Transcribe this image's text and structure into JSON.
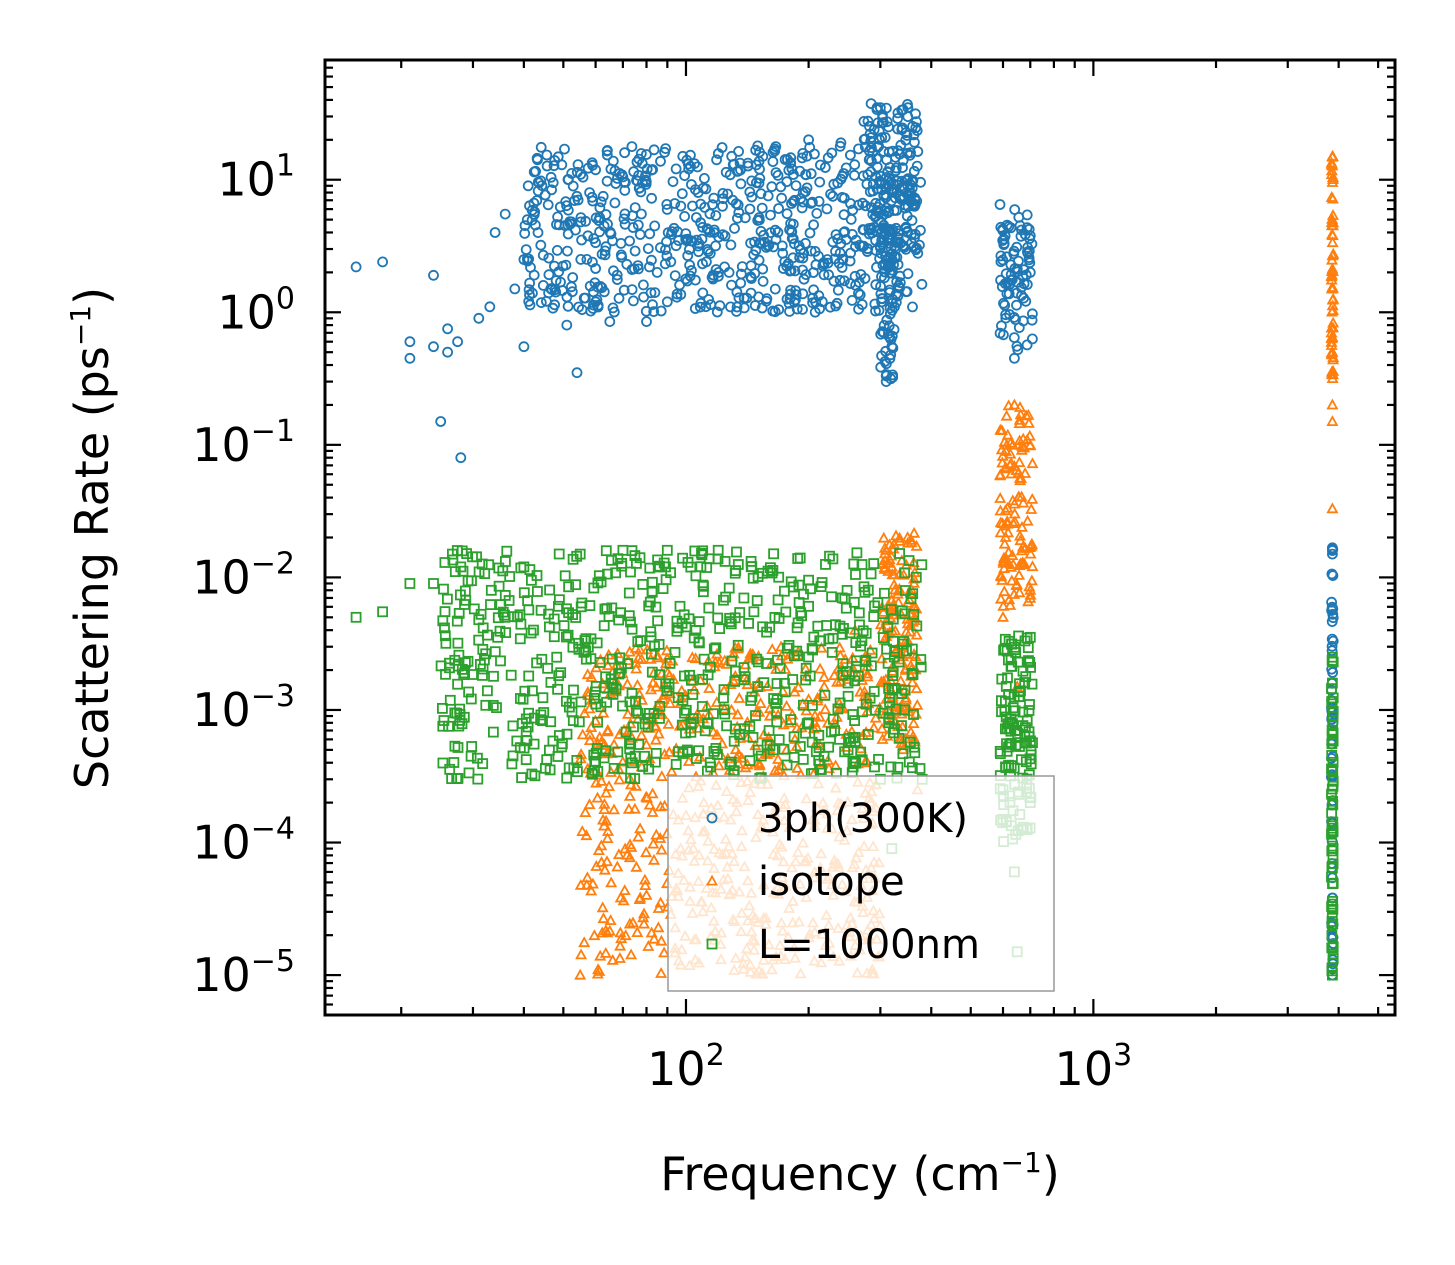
{
  "chart_data": {
    "type": "scatter",
    "x_scale": "log",
    "y_scale": "log",
    "xlabel": "Frequency (cm",
    "xlabel_sup": "−1",
    "xlabel_end": ")",
    "ylabel": "Scattering Rate (ps",
    "ylabel_sup": "−1",
    "ylabel_end": ")",
    "xlim": [
      13,
      5500
    ],
    "ylim": [
      5e-06,
      80
    ],
    "x_ticks": [
      {
        "value": 100,
        "base": "10",
        "exp": "2"
      },
      {
        "value": 1000,
        "base": "10",
        "exp": "3"
      }
    ],
    "y_ticks": [
      {
        "value": 10,
        "base": "10",
        "exp": "1"
      },
      {
        "value": 1,
        "base": "10",
        "exp": "0"
      },
      {
        "value": 0.1,
        "base": "10",
        "exp": "−1"
      },
      {
        "value": 0.01,
        "base": "10",
        "exp": "−2"
      },
      {
        "value": 0.001,
        "base": "10",
        "exp": "−3"
      },
      {
        "value": 0.0001,
        "base": "10",
        "exp": "−4"
      },
      {
        "value": 1e-05,
        "base": "10",
        "exp": "−5"
      }
    ],
    "legend_position": "bottom-center",
    "series": [
      {
        "name": "3ph(300K)",
        "marker": "circle",
        "color": "#1f77b4",
        "sample_points": [
          [
            15.5,
            2.2
          ],
          [
            18,
            2.4
          ],
          [
            21,
            0.45
          ],
          [
            21,
            0.6
          ],
          [
            24,
            0.55
          ],
          [
            24,
            1.9
          ],
          [
            25,
            0.15
          ],
          [
            26,
            0.75
          ],
          [
            26,
            0.5
          ],
          [
            27.5,
            0.6
          ],
          [
            28,
            0.08
          ],
          [
            31,
            0.9
          ],
          [
            33,
            1.1
          ],
          [
            34,
            4.0
          ],
          [
            36,
            5.5
          ],
          [
            38,
            1.5
          ],
          [
            40,
            0.55
          ],
          [
            40,
            2.5
          ],
          [
            41,
            9.0
          ],
          [
            46,
            1.4
          ],
          [
            51,
            0.8
          ],
          [
            54,
            0.35
          ],
          [
            58,
            8.0
          ],
          [
            60,
            1.2
          ],
          [
            65,
            0.85
          ],
          [
            70,
            10.5
          ],
          [
            80,
            0.85
          ],
          [
            85,
            2.0
          ],
          [
            90,
            1.2
          ],
          [
            95,
            1.3
          ],
          [
            110,
            1.4
          ],
          [
            150,
            18.0
          ],
          [
            200,
            20.0
          ],
          [
            240,
            19.0
          ],
          [
            300,
            35.0
          ],
          [
            310,
            0.3
          ],
          [
            320,
            0.55
          ],
          [
            350,
            10.0
          ],
          [
            590,
            6.5
          ],
          [
            640,
            0.45
          ],
          [
            700,
            2.0
          ],
          [
            3860,
            0.015
          ],
          [
            3860,
            1e-05
          ]
        ],
        "dense_regions": [
          {
            "x_range": [
              40,
              380
            ],
            "y_range": [
              1.0,
              18.0
            ]
          },
          {
            "x_range": [
              270,
              370
            ],
            "y_range": [
              3.0,
              38.0
            ]
          },
          {
            "x_range": [
              300,
              330
            ],
            "y_range": [
              0.3,
              5.0
            ]
          },
          {
            "x_range": [
              590,
              710
            ],
            "y_range": [
              0.5,
              6.0
            ]
          },
          {
            "x_range": [
              3840,
              3880
            ],
            "y_range": [
              1e-05,
              0.017
            ]
          }
        ]
      },
      {
        "name": "isotope",
        "marker": "triangle",
        "color": "#ff7f0e",
        "sample_points": [
          [
            55,
            1e-05
          ],
          [
            80,
            4e-05
          ],
          [
            110,
            0.00012
          ],
          [
            150,
            0.0004
          ],
          [
            200,
            0.0012
          ],
          [
            260,
            0.004
          ],
          [
            320,
            0.012
          ],
          [
            350,
            0.02
          ],
          [
            370,
            0.00025
          ],
          [
            640,
            0.2
          ],
          [
            600,
            0.005
          ],
          [
            650,
            0.0015
          ],
          [
            700,
            0.008
          ],
          [
            3860,
            15.0
          ],
          [
            3860,
            0.5
          ],
          [
            3860,
            0.2
          ],
          [
            3860,
            0.15
          ],
          [
            3860,
            0.033
          ]
        ],
        "dense_regions": [
          {
            "x_range": [
              55,
              300
            ],
            "y_range": [
              1e-05,
              0.003
            ]
          },
          {
            "x_range": [
              300,
              370
            ],
            "y_range": [
              0.0005,
              0.022
            ]
          },
          {
            "x_range": [
              590,
              710
            ],
            "y_range": [
              0.006,
              0.2
            ]
          },
          {
            "x_range": [
              3840,
              3880
            ],
            "y_range": [
              0.3,
              15.0
            ]
          }
        ]
      },
      {
        "name": "L=1000nm",
        "marker": "square",
        "color": "#2ca02c",
        "sample_points": [
          [
            15.5,
            0.005
          ],
          [
            18,
            0.0055
          ],
          [
            21,
            0.009
          ],
          [
            24,
            0.009
          ],
          [
            28,
            0.012
          ],
          [
            31,
            0.0048
          ],
          [
            36,
            0.005
          ],
          [
            40,
            0.012
          ],
          [
            55,
            0.015
          ],
          [
            70,
            0.016
          ],
          [
            90,
            0.016
          ],
          [
            120,
            0.016
          ],
          [
            150,
            0.0015
          ],
          [
            160,
            0.0007
          ],
          [
            200,
            0.0008
          ],
          [
            250,
            0.0005
          ],
          [
            300,
            0.0003
          ],
          [
            320,
            9e-05
          ],
          [
            380,
            0.0003
          ],
          [
            600,
            0.00025
          ],
          [
            640,
            6e-05
          ],
          [
            650,
            1.5e-05
          ],
          [
            700,
            0.0002
          ],
          [
            3860,
            0.0025
          ],
          [
            3860,
            1e-05
          ]
        ],
        "dense_regions": [
          {
            "x_range": [
              25,
              380
            ],
            "y_range": [
              0.0003,
              0.016
            ]
          },
          {
            "x_range": [
              590,
              710
            ],
            "y_range": [
              0.0001,
              0.0037
            ]
          },
          {
            "x_range": [
              3840,
              3880
            ],
            "y_range": [
              1e-05,
              0.0025
            ]
          }
        ]
      }
    ]
  }
}
